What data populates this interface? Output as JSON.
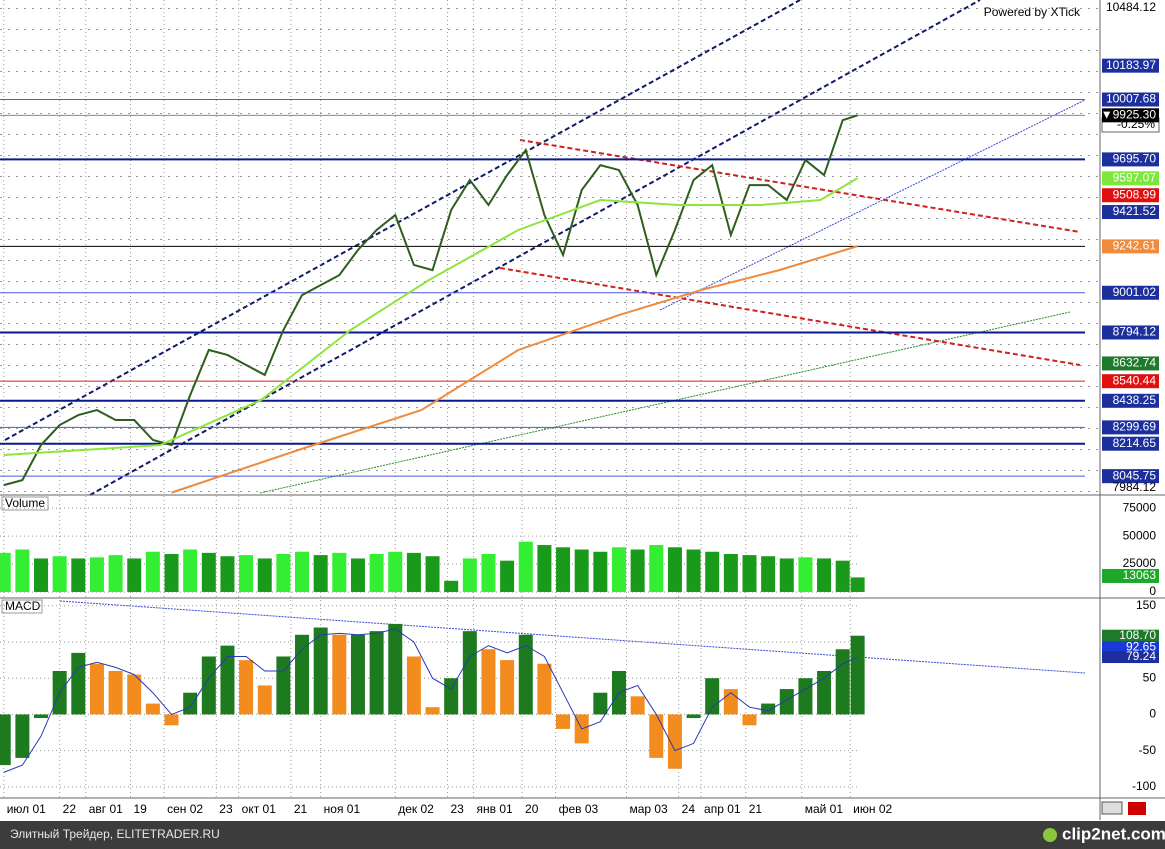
{
  "header": {
    "watermark": "Powered by XTick"
  },
  "footer": {
    "left": "Элитный Трейдер, ELITETRADER.RU",
    "right": "clip2net.com"
  },
  "chart_data": [
    {
      "type": "line",
      "xlim": [
        -1,
        294
      ],
      "ylim": [
        7958,
        10526
      ],
      "xticks": [
        {
          "value": 0,
          "label": "июл 01"
        },
        {
          "value": 15,
          "label": "22"
        },
        {
          "value": 22,
          "label": "авг 01"
        },
        {
          "value": 34,
          "label": "19"
        },
        {
          "value": 43,
          "label": "сен 02"
        },
        {
          "value": 57,
          "label": "23"
        },
        {
          "value": 63,
          "label": "окт 01"
        },
        {
          "value": 77,
          "label": "21"
        },
        {
          "value": 85,
          "label": "ноя 01"
        },
        {
          "value": 105,
          "label": "дек 02"
        },
        {
          "value": 119,
          "label": "23"
        },
        {
          "value": 126,
          "label": "янв 01"
        },
        {
          "value": 139,
          "label": "20"
        },
        {
          "value": 148,
          "label": "фев 03"
        },
        {
          "value": 167,
          "label": "мар 03"
        },
        {
          "value": 181,
          "label": "24"
        },
        {
          "value": 187,
          "label": "апр 01"
        },
        {
          "value": 199,
          "label": "21"
        },
        {
          "value": 214,
          "label": "май 01"
        },
        {
          "value": 227,
          "label": "июн 02"
        }
      ],
      "x": [
        0,
        5,
        10,
        15,
        20,
        25,
        30,
        35,
        40,
        45,
        50,
        55,
        60,
        65,
        70,
        75,
        80,
        85,
        90,
        95,
        100,
        105,
        110,
        115,
        120,
        125,
        130,
        135,
        140,
        145,
        150,
        155,
        160,
        165,
        170,
        175,
        180,
        185,
        190,
        195,
        200,
        205,
        210,
        215,
        220,
        225,
        229
      ],
      "series": [
        {
          "color": "#2f5e1e",
          "values": [
            7999,
            8025,
            8208,
            8312,
            8364,
            8390,
            8338,
            8338,
            8234,
            8208,
            8468,
            8703,
            8677,
            8625,
            8573,
            8807,
            8989,
            9041,
            9093,
            9224,
            9328,
            9406,
            9146,
            9119,
            9432,
            9588,
            9458,
            9614,
            9744,
            9406,
            9198,
            9536,
            9666,
            9640,
            9458,
            9093,
            9328,
            9588,
            9666,
            9302,
            9562,
            9562,
            9484,
            9692,
            9614,
            9900,
            9925.3
          ]
        },
        {
          "color": "#8ee63a",
          "x": [
            0,
            42,
            69,
            93,
            114,
            138,
            160,
            181,
            203,
            219,
            229
          ],
          "values": [
            8156,
            8208,
            8442,
            8807,
            9067,
            9328,
            9484,
            9458,
            9458,
            9484,
            9598
          ]
        },
        {
          "color": "#f08a3c",
          "x": [
            45,
            79,
            112,
            138,
            165,
            187,
            208,
            229
          ],
          "values": [
            7960,
            8182,
            8390,
            8703,
            8885,
            9015,
            9119,
            9244
          ]
        }
      ],
      "levels": [
        {
          "value": 10484.12,
          "label": "10484.12"
        },
        {
          "value": 10183.97,
          "label": "10183.97",
          "box": "#1c2f9c"
        },
        {
          "value": 10007.68,
          "label": "10007.68",
          "box": "#1c2f9c",
          "line": "#4a5ad8",
          "width": 1
        },
        {
          "value": 9925.3,
          "label": "▼9925.30",
          "box": "#000000",
          "line": "#888888",
          "width": 1
        },
        {
          "value": 9695.7,
          "label": "9695.70",
          "box": "#1c2f9c",
          "line": "#0a1a8c",
          "width": 2
        },
        {
          "value": 9597.07,
          "label": "9597.07",
          "box": "#7ce83a"
        },
        {
          "value": 9508.99,
          "label": "9508.99",
          "box": "#e01010"
        },
        {
          "value": 9421.52,
          "label": "9421.52",
          "box": "#1c2f9c"
        },
        {
          "value": 9242.61,
          "label": "9242.61",
          "box": "#f08a3c",
          "line": "#000000",
          "width": 1
        },
        {
          "value": 9001.02,
          "label": "9001.02",
          "box": "#1c2f9c",
          "line": "#4a5ad8",
          "width": 1
        },
        {
          "value": 8794.12,
          "label": "8794.12",
          "box": "#1c2f9c",
          "line": "#0a1a8c",
          "width": 2
        },
        {
          "value": 8632.74,
          "label": "8632.74",
          "box": "#1e7a2a"
        },
        {
          "value": 8540.44,
          "label": "8540.44",
          "box": "#e01010",
          "line": "#d02020",
          "width": 1
        },
        {
          "value": 8438.25,
          "label": "8438.25",
          "box": "#1c2f9c",
          "line": "#0a1a8c",
          "width": 2
        },
        {
          "value": 8299.69,
          "label": "8299.69",
          "box": "#1c2f9c",
          "line": "#4a5ad8",
          "width": 1
        },
        {
          "value": 8214.65,
          "label": "8214.65",
          "box": "#1c2f9c",
          "line": "#0a1a8c",
          "width": 2
        },
        {
          "value": 8045.75,
          "label": "8045.75",
          "box": "#1c2f9c",
          "line": "#4a5ad8",
          "width": 1
        },
        {
          "value": 7984.12,
          "label": "7984.12"
        }
      ],
      "change_label": "-0.25%"
    },
    {
      "type": "bar",
      "title": "Volume",
      "ylim": [
        -4500,
        85000
      ],
      "yticks": [
        0,
        25000,
        50000,
        75000
      ],
      "up_color": "#33ee33",
      "down_color": "#1a9a1a",
      "box": "#1ea82a",
      "values": [
        35000,
        38000,
        30000,
        32000,
        30000,
        31000,
        33000,
        30000,
        36000,
        34000,
        38000,
        35000,
        32000,
        33000,
        30000,
        34000,
        36000,
        33000,
        35000,
        30000,
        34000,
        36000,
        35000,
        32000,
        10000,
        30000,
        34000,
        28000,
        45000,
        42000,
        40000,
        38000,
        36000,
        40000,
        38000,
        42000,
        40000,
        38000,
        36000,
        34000,
        33000,
        32000,
        30000,
        31000,
        30000,
        28000,
        13063
      ]
    },
    {
      "type": "macd",
      "title": "MACD",
      "ylim": [
        -114,
        158
      ],
      "yticks": [
        -100,
        -50,
        0,
        50,
        100,
        150
      ],
      "up_color": "#1e7a1e",
      "down_color": "#f28c1e",
      "line_color": "#2a3ab0",
      "values": [
        -70,
        -60,
        -5,
        60,
        85,
        70,
        60,
        55,
        15,
        -15,
        30,
        80,
        95,
        75,
        40,
        80,
        110,
        120,
        110,
        110,
        115,
        125,
        80,
        10,
        50,
        115,
        90,
        75,
        110,
        70,
        -20,
        -40,
        30,
        60,
        25,
        -60,
        -75,
        -5,
        50,
        35,
        -15,
        15,
        35,
        50,
        60,
        90,
        108.7
      ],
      "signal": [
        -80,
        -70,
        -30,
        30,
        65,
        72,
        65,
        55,
        30,
        0,
        10,
        50,
        80,
        80,
        60,
        60,
        90,
        110,
        112,
        110,
        112,
        118,
        100,
        50,
        35,
        80,
        95,
        85,
        95,
        80,
        30,
        -20,
        -10,
        30,
        40,
        0,
        -50,
        -40,
        10,
        30,
        10,
        5,
        20,
        35,
        50,
        70,
        79.24
      ],
      "markers": [
        {
          "value": 108.7,
          "label": "108.70",
          "box": "#1e7a2a"
        },
        {
          "value": 92.65,
          "label": "92.65",
          "box": "#1a3ad8"
        },
        {
          "value": 79.24,
          "label": "79.24",
          "box": "#1c2f9c"
        }
      ]
    }
  ]
}
